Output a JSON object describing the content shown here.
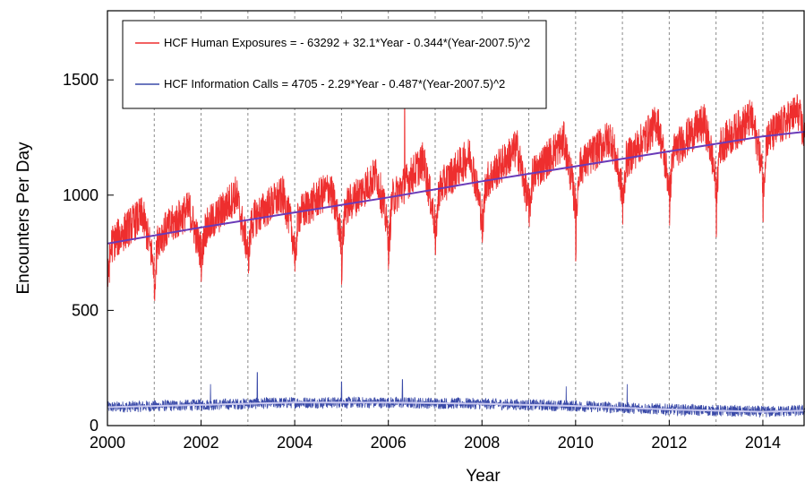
{
  "chart_data": {
    "type": "line",
    "xlabel": "Year",
    "ylabel": "Encounters Per Day",
    "xlim": [
      2000,
      2014.9
    ],
    "ylim": [
      0,
      1800
    ],
    "x_ticks": [
      2000,
      2002,
      2004,
      2006,
      2008,
      2010,
      2012,
      2014
    ],
    "y_ticks": [
      0,
      500,
      1000,
      1500
    ],
    "vertical_gridlines": "yearly, dashed gray",
    "legend": {
      "placement": "top-left",
      "entries": [
        {
          "label": "HCF Human Exposures = - 63292 + 32.1*Year - 0.344*(Year-2007.5)^2",
          "color": "#ee2e2e"
        },
        {
          "label": "HCF Information Calls = 4705 - 2.29*Year - 0.487*(Year-2007.5)^2",
          "color": "#3a4aa8"
        }
      ]
    },
    "series": [
      {
        "name": "HCF Human Exposures",
        "color": "#ee2e2e",
        "trend_color": "#6a3ab8",
        "trend_x": [
          2000,
          2002,
          2004,
          2006,
          2008,
          2010,
          2012,
          2014,
          2014.9
        ],
        "trend_y": [
          790,
          860,
          925,
          990,
          1060,
          1125,
          1190,
          1255,
          1275
        ],
        "seasonal_peak_x": [
          2000.75,
          2001.75,
          2002.75,
          2003.75,
          2004.75,
          2005.75,
          2006.75,
          2007.75,
          2008.75,
          2009.75,
          2010.75,
          2011.75,
          2012.75,
          2013.75,
          2014.75
        ],
        "seasonal_peak_y": [
          1000,
          1020,
          1100,
          1080,
          1110,
          1180,
          1250,
          1270,
          1300,
          1330,
          1340,
          1420,
          1400,
          1420,
          1450
        ],
        "seasonal_trough_x": [
          2000.0,
          2001.0,
          2002.0,
          2003.0,
          2004.0,
          2005.0,
          2006.0,
          2007.0,
          2008.0,
          2009.0,
          2010.0,
          2011.0,
          2012.0,
          2013.0,
          2014.0
        ],
        "seasonal_trough_y": [
          550,
          510,
          650,
          620,
          570,
          600,
          620,
          680,
          700,
          820,
          700,
          830,
          860,
          780,
          850
        ]
      },
      {
        "name": "HCF Information Calls",
        "color": "#3a4aa8",
        "trend_color": "#c8c8f0",
        "trend_x": [
          2000,
          2002,
          2004,
          2006,
          2008,
          2010,
          2012,
          2014,
          2014.9
        ],
        "trend_y": [
          80,
          90,
          100,
          100,
          95,
          85,
          70,
          60,
          65
        ],
        "band_half_width": 25,
        "spike_x": [
          2002.2,
          2003.2,
          2005.0,
          2006.3,
          2009.8,
          2011.1
        ],
        "spike_y": [
          180,
          230,
          190,
          200,
          170,
          180
        ]
      }
    ]
  }
}
